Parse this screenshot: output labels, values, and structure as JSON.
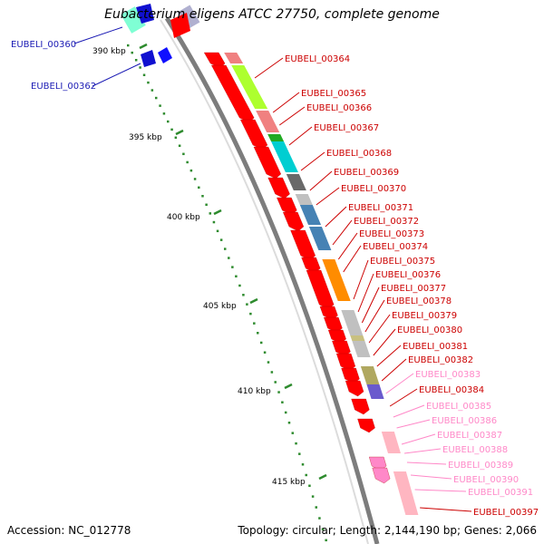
{
  "title": "Eubacterium eligens ATCC 27750, complete genome",
  "footer": {
    "accession": "Accession: NC_012778",
    "summary": "Topology: circular; Length: 2,144,190 bp; Genes: 2,066"
  },
  "colors": {
    "backbone": "#7d7d7d",
    "tick_mark": "#2e8b2e",
    "forward_gene": "#ff0000",
    "reverse_gene_label": "#1a1ab4",
    "forward_gene_label": "#cc0000",
    "pseudo_gene_label": "#ff88c8"
  },
  "scale_labels": [
    "390 kbp",
    "395 kbp",
    "400 kbp",
    "405 kbp",
    "410 kbp",
    "415 kbp"
  ],
  "reverse_labels": [
    "EUBELI_00360",
    "EUBELI_00362"
  ],
  "forward_labels": [
    {
      "text": "EUBELI_00364",
      "color": "#cc0000"
    },
    {
      "text": "EUBELI_00365",
      "color": "#cc0000"
    },
    {
      "text": "EUBELI_00366",
      "color": "#cc0000"
    },
    {
      "text": "EUBELI_00367",
      "color": "#cc0000"
    },
    {
      "text": "EUBELI_00368",
      "color": "#cc0000"
    },
    {
      "text": "EUBELI_00369",
      "color": "#cc0000"
    },
    {
      "text": "EUBELI_00370",
      "color": "#cc0000"
    },
    {
      "text": "EUBELI_00371",
      "color": "#cc0000"
    },
    {
      "text": "EUBELI_00372",
      "color": "#cc0000"
    },
    {
      "text": "EUBELI_00373",
      "color": "#cc0000"
    },
    {
      "text": "EUBELI_00374",
      "color": "#cc0000"
    },
    {
      "text": "EUBELI_00375",
      "color": "#cc0000"
    },
    {
      "text": "EUBELI_00376",
      "color": "#cc0000"
    },
    {
      "text": "EUBELI_00377",
      "color": "#cc0000"
    },
    {
      "text": "EUBELI_00378",
      "color": "#cc0000"
    },
    {
      "text": "EUBELI_00379",
      "color": "#cc0000"
    },
    {
      "text": "EUBELI_00380",
      "color": "#cc0000"
    },
    {
      "text": "EUBELI_00381",
      "color": "#cc0000"
    },
    {
      "text": "EUBELI_00382",
      "color": "#cc0000"
    },
    {
      "text": "EUBELI_00383",
      "color": "#ff88c8"
    },
    {
      "text": "EUBELI_00384",
      "color": "#cc0000"
    },
    {
      "text": "EUBELI_00385",
      "color": "#ff88c8"
    },
    {
      "text": "EUBELI_00386",
      "color": "#ff88c8"
    },
    {
      "text": "EUBELI_00387",
      "color": "#ff88c8"
    },
    {
      "text": "EUBELI_00388",
      "color": "#ff88c8"
    },
    {
      "text": "EUBELI_00389",
      "color": "#ff88c8"
    },
    {
      "text": "EUBELI_00390",
      "color": "#ff88c8"
    },
    {
      "text": "EUBELI_00391",
      "color": "#ff88c8"
    },
    {
      "text": "EUBELI_00397",
      "color": "#cc0000"
    }
  ],
  "cog_blocks": [
    {
      "color": "#f08080"
    },
    {
      "color": "#adff2f"
    },
    {
      "color": "#f08080"
    },
    {
      "color": "#22aa22"
    },
    {
      "color": "#00ced1"
    },
    {
      "color": "#696969"
    },
    {
      "color": "#c0c0c0"
    },
    {
      "color": "#4682b4"
    },
    {
      "color": "#4682b4"
    },
    {
      "color": "#ff8c00"
    },
    {
      "color": "#c0c0c0"
    },
    {
      "color": "#c8c080"
    },
    {
      "color": "#c0c0c0"
    },
    {
      "color": "#b0a860"
    },
    {
      "color": "#6a5acd"
    },
    {
      "color": "#ffb6c1"
    },
    {
      "color": "#ffb6c1"
    }
  ]
}
